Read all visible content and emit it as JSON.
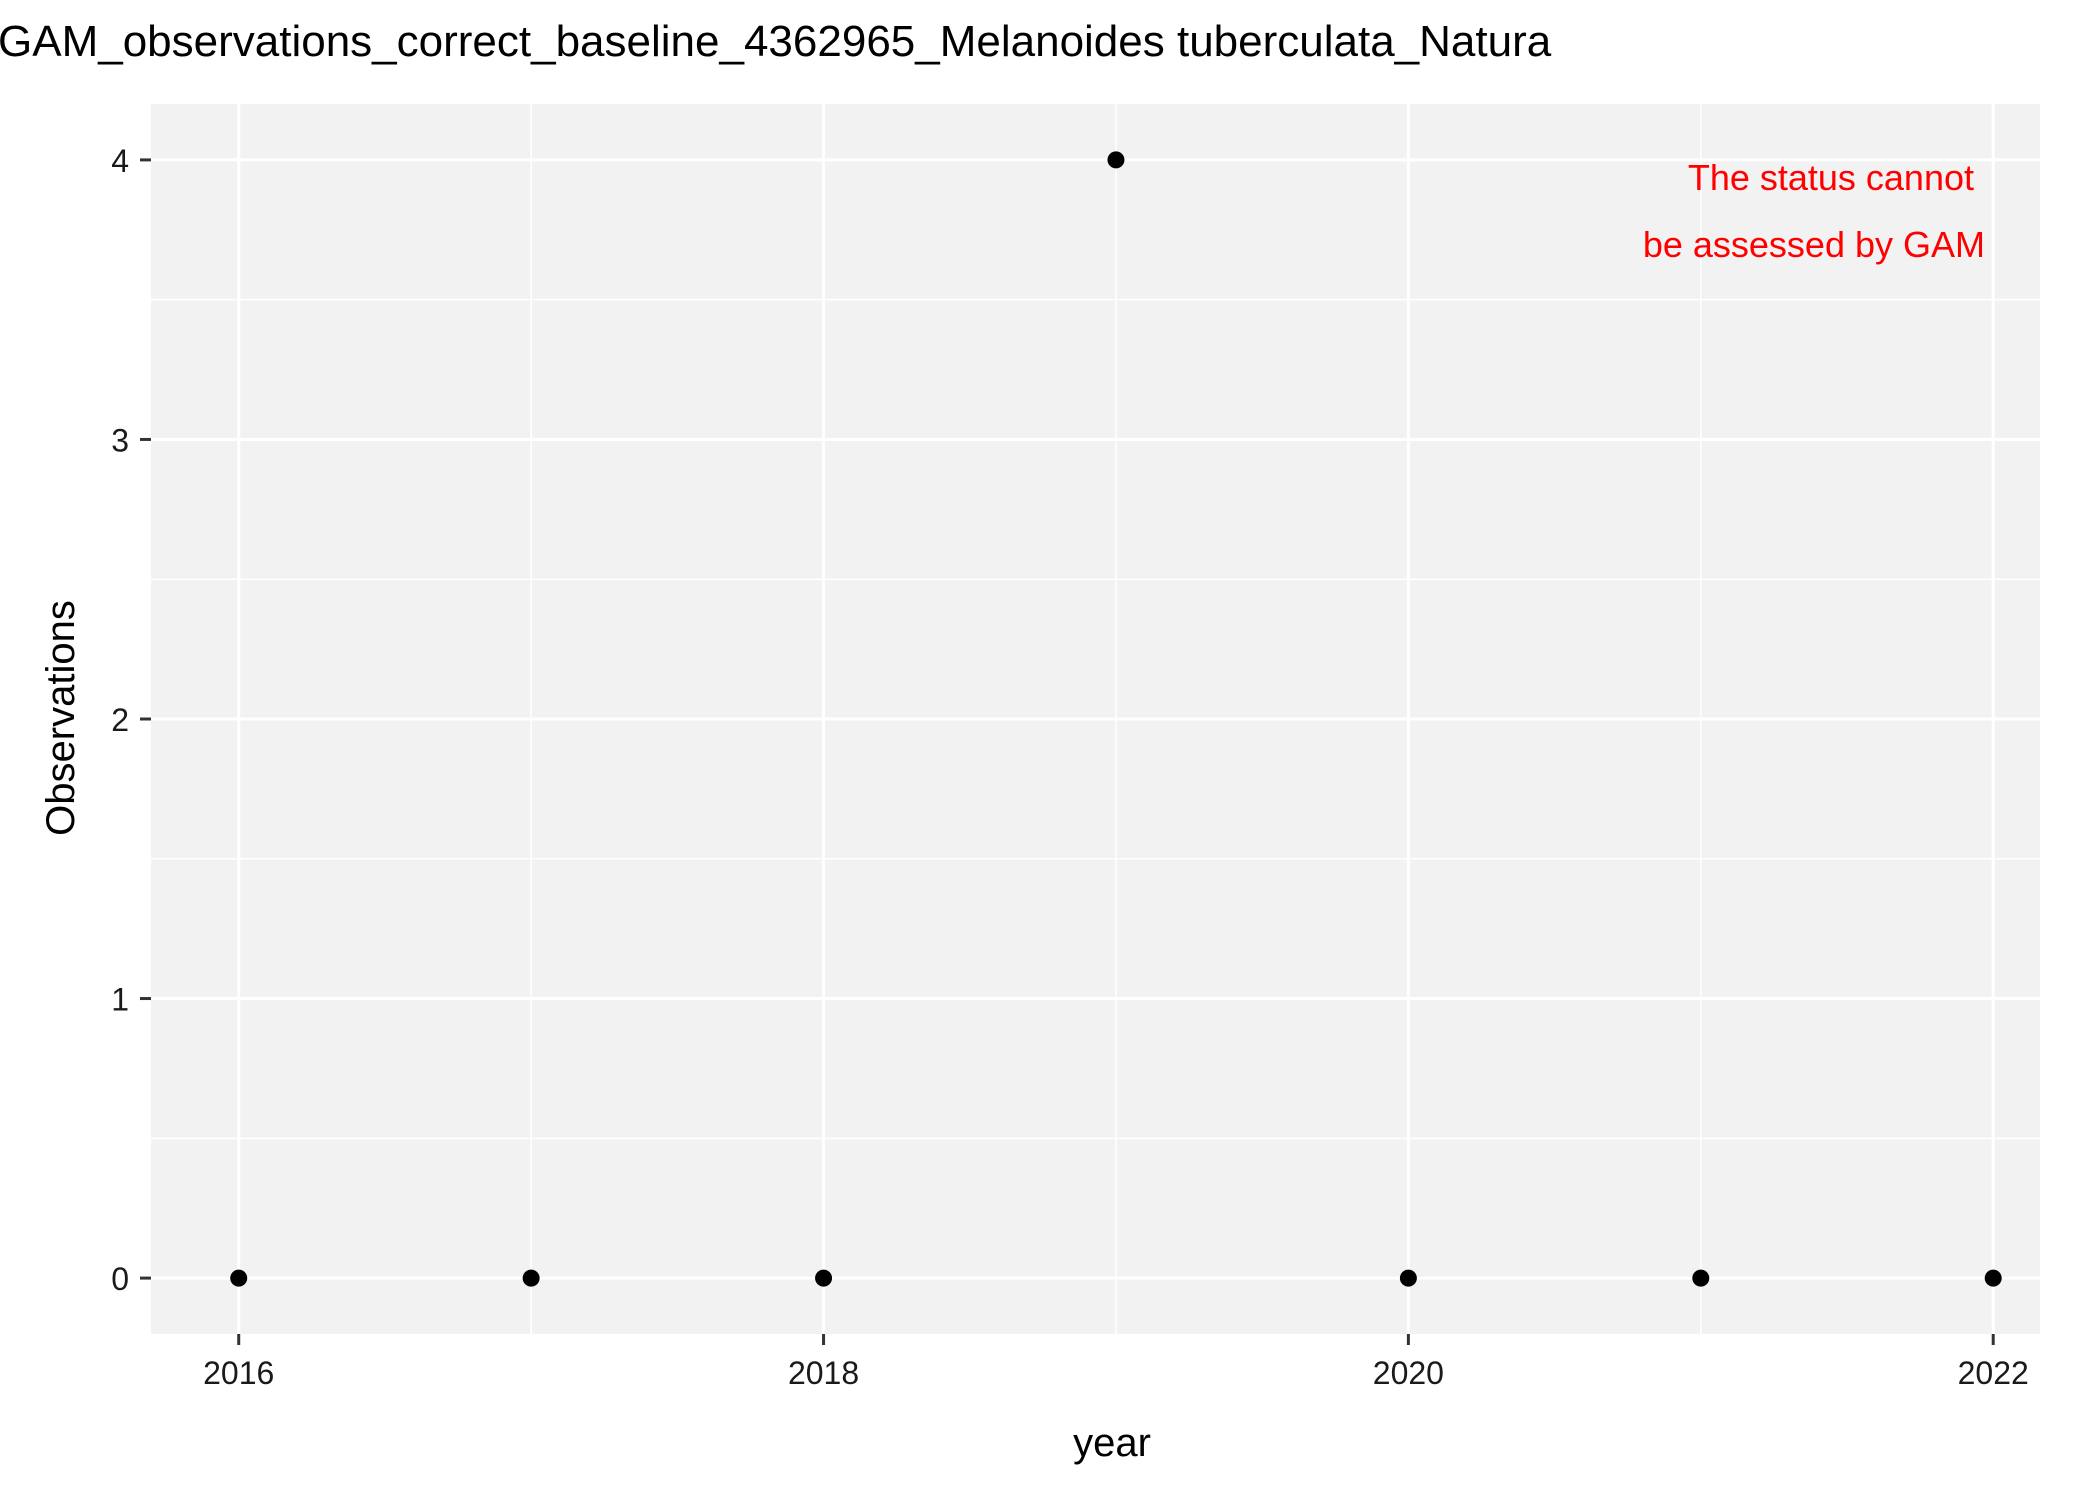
{
  "chart_data": {
    "type": "scatter",
    "title": "GAM_observations_correct_baseline_4362965_Melanoides tuberculata_Natura",
    "xlabel": "year",
    "ylabel": "Observations",
    "x_ticks": [
      "2016",
      "2018",
      "2020",
      "2022"
    ],
    "y_ticks": [
      "0",
      "1",
      "2",
      "3",
      "4"
    ],
    "xlim": [
      2015.7,
      2022.16
    ],
    "ylim": [
      -0.2,
      4.2
    ],
    "x_gridlines_major": [
      2016,
      2018,
      2020,
      2022
    ],
    "x_gridlines_minor": [
      2017,
      2019,
      2021
    ],
    "y_gridlines_major": [
      0,
      1,
      2,
      3,
      4
    ],
    "y_gridlines_minor": [
      0.5,
      1.5,
      2.5,
      3.5
    ],
    "grid": true,
    "series": [
      {
        "x": [
          2016,
          2017,
          2018,
          2019,
          2020,
          2021,
          2022
        ],
        "y": [
          0,
          0,
          0,
          4,
          0,
          0,
          0
        ]
      }
    ],
    "annotation": {
      "lines": [
        "The status cannot",
        "be assessed by GAM"
      ],
      "color": "#ff0000",
      "position": "top-right"
    },
    "colors": {
      "panel_background": "#f2f2f2",
      "grid": "#ffffff",
      "points": "#000000",
      "tick_text": "#1a1a1a"
    }
  }
}
